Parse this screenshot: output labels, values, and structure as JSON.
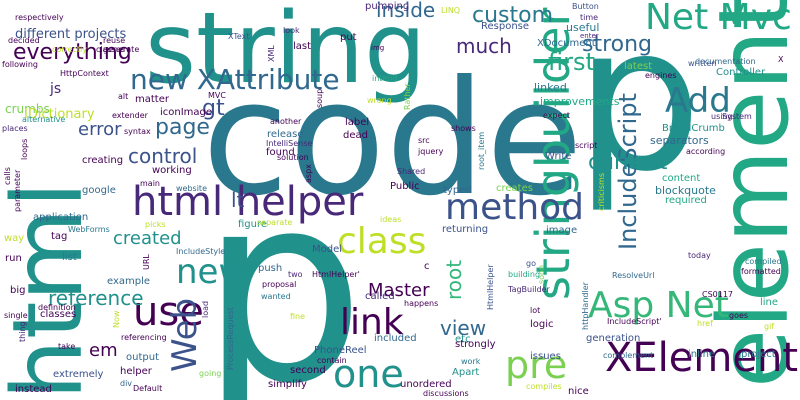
{
  "palette": {
    "teal": "#2a788e",
    "darkteal": "#21918c",
    "green": "#22a884",
    "lime": "#7ad151",
    "yellow": "#bddf26",
    "purple": "#440154",
    "indigo": "#3b528b",
    "violet": "#482878",
    "blue": "#31688e",
    "sea": "#1f9e89",
    "mint": "#35b779"
  },
  "words": [
    {
      "text": "code"
    },
    {
      "text": "p"
    },
    {
      "text": "string"
    },
    {
      "text": "html"
    },
    {
      "text": "element"
    },
    {
      "text": "p"
    },
    {
      "text": "stringbuilder"
    },
    {
      "text": "html helper"
    },
    {
      "text": "Net Mvc"
    },
    {
      "text": "XElement"
    },
    {
      "text": "new XAttribute"
    },
    {
      "text": "method"
    },
    {
      "text": "Asp Net"
    },
    {
      "text": "class"
    },
    {
      "text": "link"
    },
    {
      "text": "new"
    },
    {
      "text": "use"
    },
    {
      "text": "one"
    },
    {
      "text": "pre"
    },
    {
      "text": "Web"
    },
    {
      "text": "IncludeScript"
    },
    {
      "text": "Add"
    },
    {
      "text": "current"
    },
    {
      "text": "strong"
    },
    {
      "text": "first"
    },
    {
      "text": "custom"
    },
    {
      "text": "much"
    },
    {
      "text": "inside"
    },
    {
      "text": "page"
    },
    {
      "text": "everything"
    },
    {
      "text": "control"
    },
    {
      "text": "reference"
    },
    {
      "text": "Master"
    },
    {
      "text": "view"
    },
    {
      "text": "root"
    },
    {
      "text": "created"
    },
    {
      "text": "error"
    },
    {
      "text": "em"
    },
    {
      "text": "gt"
    },
    {
      "text": "lt"
    },
    {
      "text": "different projects"
    },
    {
      "text": "js"
    },
    {
      "text": "crumbs"
    },
    {
      "text": "IDictionary"
    },
    {
      "text": "BreadCrumb"
    },
    {
      "text": "separators"
    },
    {
      "text": "blockquote"
    },
    {
      "text": "content"
    },
    {
      "text": "improvements"
    },
    {
      "text": "linked"
    },
    {
      "text": "latest"
    },
    {
      "text": "XDocument"
    },
    {
      "text": "useful"
    },
    {
      "text": "Response"
    },
    {
      "text": "pumping"
    },
    {
      "text": "LINQ"
    },
    {
      "text": "put"
    },
    {
      "text": "last"
    },
    {
      "text": "look"
    },
    {
      "text": "XText"
    },
    {
      "text": "XML"
    },
    {
      "text": "img"
    },
    {
      "text": "Button"
    },
    {
      "text": "time"
    },
    {
      "text": "enter"
    },
    {
      "text": "documentation"
    },
    {
      "text": "written"
    },
    {
      "text": "Controller"
    },
    {
      "text": "engines"
    },
    {
      "text": "using"
    },
    {
      "text": "System"
    },
    {
      "text": "according"
    },
    {
      "text": "expect"
    },
    {
      "text": "script"
    },
    {
      "text": "Write"
    },
    {
      "text": "typed"
    },
    {
      "text": "creates"
    },
    {
      "text": "returning"
    },
    {
      "text": "image"
    },
    {
      "text": "required"
    },
    {
      "text": "compiled"
    },
    {
      "text": "formatted"
    },
    {
      "text": "today"
    },
    {
      "text": "ResolveUrl"
    },
    {
      "text": "CS0117"
    },
    {
      "text": "line"
    },
    {
      "text": "goes"
    },
    {
      "text": "href"
    },
    {
      "text": "IncludeScript'"
    },
    {
      "text": "gif"
    },
    {
      "text": "project"
    },
    {
      "text": "inline"
    },
    {
      "text": "complement"
    },
    {
      "text": "issues"
    },
    {
      "text": "nice"
    },
    {
      "text": "discussions"
    },
    {
      "text": "compiles"
    },
    {
      "text": "work"
    },
    {
      "text": "etc"
    },
    {
      "text": "generation"
    },
    {
      "text": "lot"
    },
    {
      "text": "logic"
    },
    {
      "text": "TagBuilder"
    },
    {
      "text": "building"
    },
    {
      "text": "go"
    },
    {
      "text": "HtmlHelper"
    },
    {
      "text": "httpHandler"
    },
    {
      "text": "soon"
    },
    {
      "text": "strongly"
    },
    {
      "text": "included"
    },
    {
      "text": "Apart"
    },
    {
      "text": "unordered"
    },
    {
      "text": "simplify"
    },
    {
      "text": "second"
    },
    {
      "text": "PhoneReel"
    },
    {
      "text": "contain"
    },
    {
      "text": "called"
    },
    {
      "text": "push"
    },
    {
      "text": "two"
    },
    {
      "text": "proposal"
    },
    {
      "text": "HtmlHelper'"
    },
    {
      "text": "wanted"
    },
    {
      "text": "happens"
    },
    {
      "text": "c"
    },
    {
      "text": "Model"
    },
    {
      "text": "ideas"
    },
    {
      "text": "figure"
    },
    {
      "text": "separate"
    },
    {
      "text": "fine"
    },
    {
      "text": "ProcessRequest"
    },
    {
      "text": "load"
    },
    {
      "text": "helper"
    },
    {
      "text": "output"
    },
    {
      "text": "referencing"
    },
    {
      "text": "Now"
    },
    {
      "text": "div"
    },
    {
      "text": "Default"
    },
    {
      "text": "going"
    },
    {
      "text": "extremely"
    },
    {
      "text": "instead"
    },
    {
      "text": "take"
    },
    {
      "text": "thing"
    },
    {
      "text": "single"
    },
    {
      "text": "definition"
    },
    {
      "text": "classes"
    },
    {
      "text": "big"
    },
    {
      "text": "example"
    },
    {
      "text": "URL"
    },
    {
      "text": "IncludeStyle"
    },
    {
      "text": "picks"
    },
    {
      "text": "list"
    },
    {
      "text": "tag"
    },
    {
      "text": "way"
    },
    {
      "text": "run"
    },
    {
      "text": "application"
    },
    {
      "text": "WebForms"
    },
    {
      "text": "google"
    },
    {
      "text": "creating"
    },
    {
      "text": "working"
    },
    {
      "text": "main"
    },
    {
      "text": "website"
    },
    {
      "text": "Shared"
    },
    {
      "text": "Public"
    },
    {
      "text": "found"
    },
    {
      "text": "release"
    },
    {
      "text": "another"
    },
    {
      "text": "label"
    },
    {
      "text": "dead"
    },
    {
      "text": "src"
    },
    {
      "text": "jquery"
    },
    {
      "text": "shows"
    },
    {
      "text": "root_item"
    },
    {
      "text": "solution"
    },
    {
      "text": "IntelliSense"
    },
    {
      "text": "soup"
    },
    {
      "text": "aspx"
    },
    {
      "text": "wrong"
    },
    {
      "text": "Rather"
    },
    {
      "text": "intend"
    },
    {
      "text": "MVC"
    },
    {
      "text": "iconImage"
    },
    {
      "text": "alt"
    },
    {
      "text": "extender"
    },
    {
      "text": "matter"
    },
    {
      "text": "syntax"
    },
    {
      "text": "places"
    },
    {
      "text": "alternative"
    },
    {
      "text": "loops"
    },
    {
      "text": "calls"
    },
    {
      "text": "parameter"
    },
    {
      "text": "HttpContext"
    },
    {
      "text": "following"
    },
    {
      "text": "correctly"
    },
    {
      "text": "generate"
    },
    {
      "text": "decided"
    },
    {
      "text": "reuse"
    },
    {
      "text": "classes"
    },
    {
      "text": "respectively"
    },
    {
      "text": "X"
    },
    {
      "text": "criticisms"
    }
  ]
}
